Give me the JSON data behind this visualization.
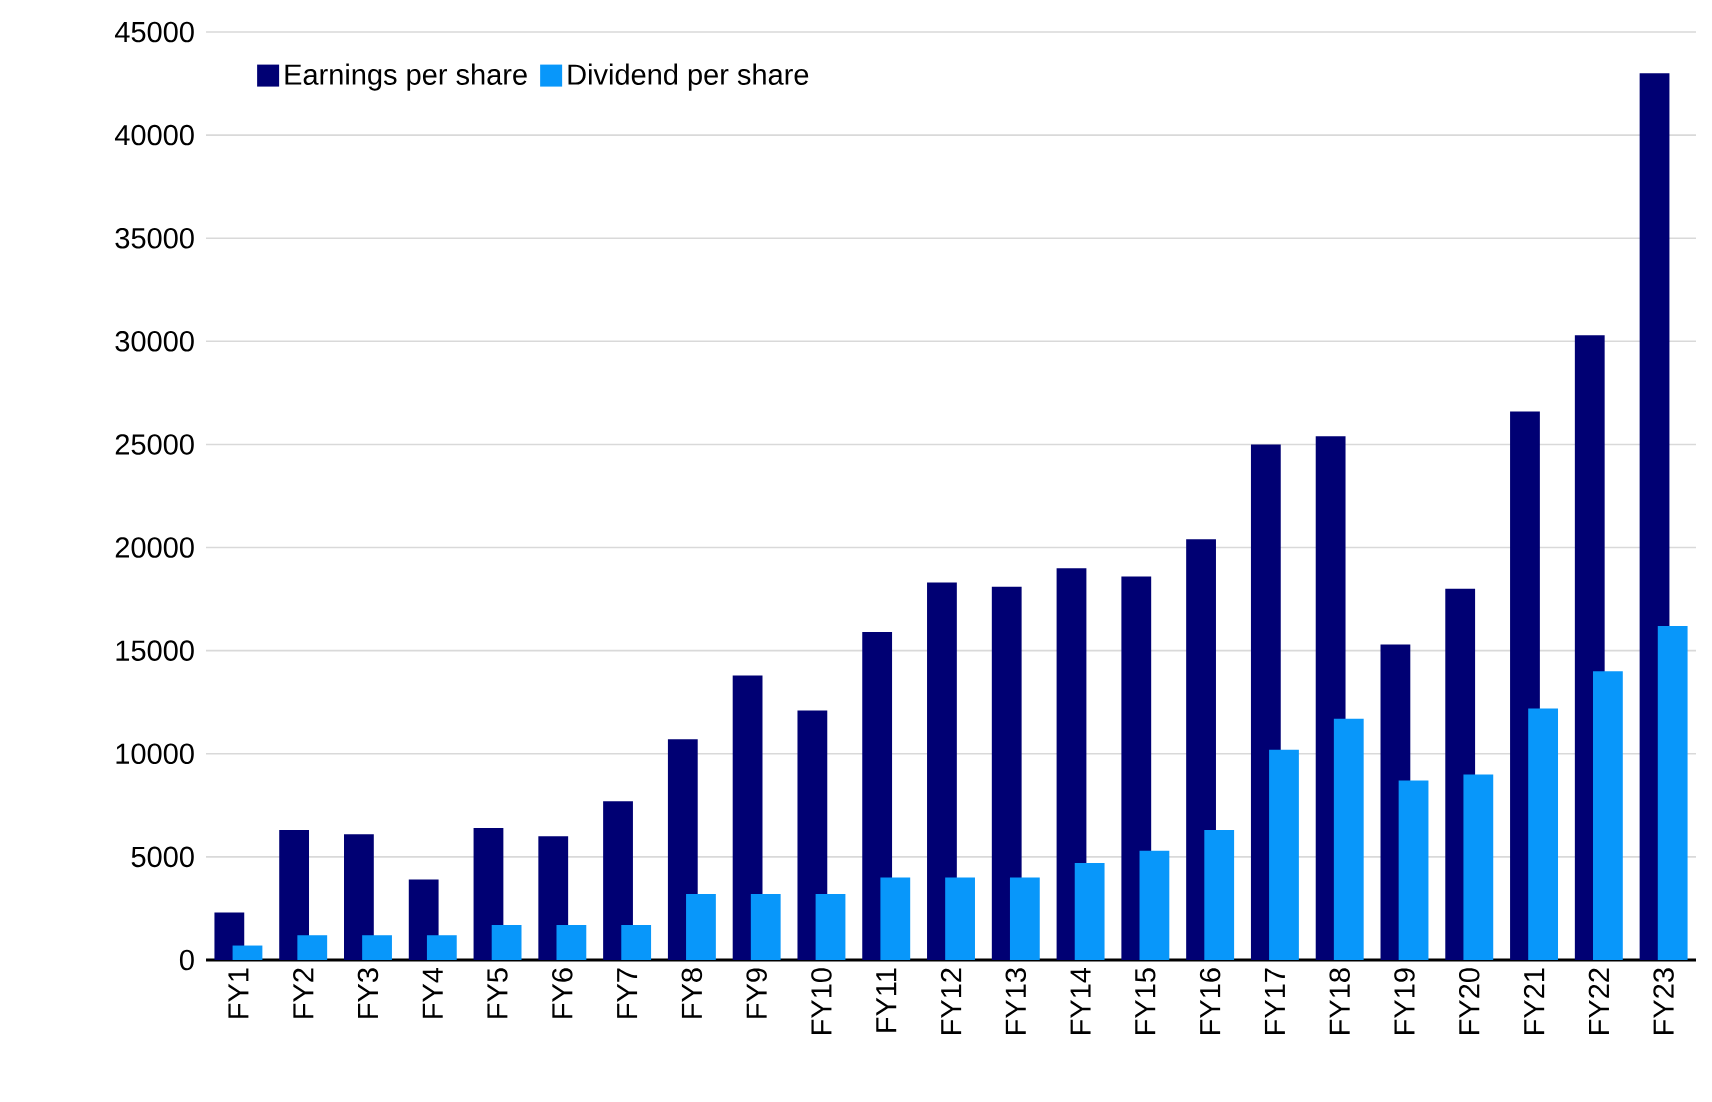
{
  "chart_data": {
    "type": "bar",
    "categories": [
      "FY1",
      "FY2",
      "FY3",
      "FY4",
      "FY5",
      "FY6",
      "FY7",
      "FY8",
      "FY9",
      "FY10",
      "FY11",
      "FY12",
      "FY13",
      "FY14",
      "FY15",
      "FY16",
      "FY17",
      "FY18",
      "FY19",
      "FY20",
      "FY21",
      "FY22",
      "FY23"
    ],
    "series": [
      {
        "name": "Earnings per share",
        "color": "#000073",
        "values": [
          2300,
          6300,
          6100,
          3900,
          6400,
          6000,
          7700,
          10700,
          13800,
          12100,
          15900,
          18300,
          18100,
          19000,
          18600,
          20400,
          25000,
          25400,
          15300,
          18000,
          26600,
          30300,
          43000
        ]
      },
      {
        "name": "Dividend per share",
        "color": "#0897fa",
        "values": [
          700,
          1200,
          1200,
          1200,
          1700,
          1700,
          1700,
          3200,
          3200,
          3200,
          4000,
          4000,
          4000,
          4700,
          5300,
          6300,
          10200,
          11700,
          8700,
          9000,
          12200,
          14000,
          16200
        ]
      }
    ],
    "ylim": [
      0,
      45000
    ],
    "yticks": [
      0,
      5000,
      10000,
      15000,
      20000,
      25000,
      30000,
      35000,
      40000,
      45000
    ],
    "grid": "y",
    "legend": "top left"
  }
}
